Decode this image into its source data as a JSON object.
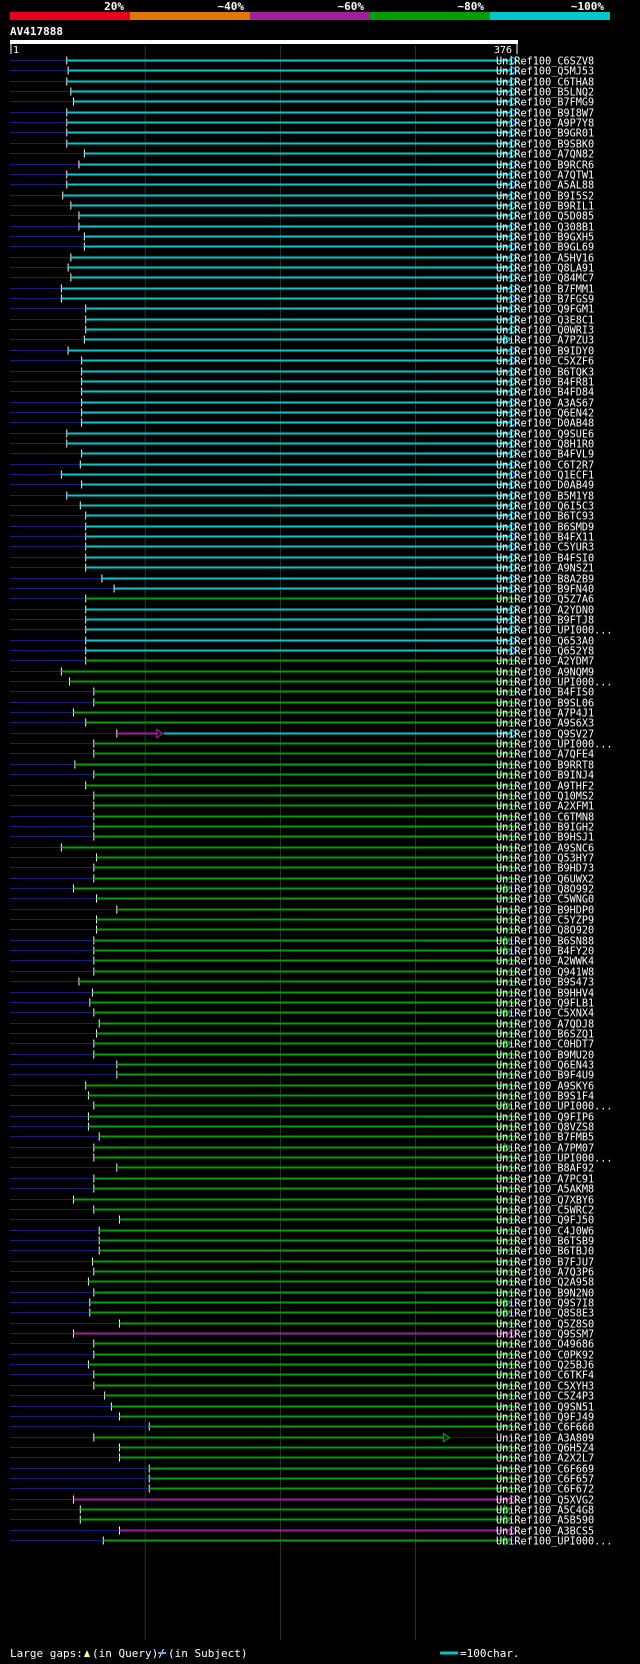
{
  "query": {
    "name": "AV417888",
    "start": "1",
    "end": "376",
    "length": 376
  },
  "scale_labels": [
    "20%",
    "~40%",
    "~60%",
    "~80%",
    "~100%"
  ],
  "colors": {
    "scale": [
      "#e8001e",
      "#e07800",
      "#a0209a",
      "#00a000",
      "#00c8c8"
    ],
    "cyan": "#00c8c8",
    "green": "#00a000",
    "magenta": "#a0209a",
    "background_line": "#1a1a7a",
    "query_bar": "#ffffff"
  },
  "footer": {
    "gaps_prefix": "Large gaps:",
    "gaps_query": "(in Query)/",
    "gaps_subject": "(in Subject)",
    "legend_text": "=100char."
  },
  "hits": [
    {
      "name": "UniRef100_C6SZV8",
      "color": "cyan",
      "start": 43,
      "end": 376,
      "arrow": true
    },
    {
      "name": "UniRef100_Q5MJ53",
      "color": "cyan",
      "start": 44,
      "end": 376,
      "arrow": true
    },
    {
      "name": "UniRef100_C6THA8",
      "color": "cyan",
      "start": 43,
      "end": 376,
      "arrow": true
    },
    {
      "name": "UniRef100_B5LNQ2",
      "color": "cyan",
      "start": 46,
      "end": 376,
      "arrow": true
    },
    {
      "name": "UniRef100_B7FMG9",
      "color": "cyan",
      "start": 48,
      "end": 376,
      "arrow": true
    },
    {
      "name": "UniRef100_B9I8W7",
      "color": "cyan",
      "start": 43,
      "end": 376,
      "arrow": true
    },
    {
      "name": "UniRef100_A9P7Y8",
      "color": "cyan",
      "start": 43,
      "end": 376,
      "arrow": true
    },
    {
      "name": "UniRef100_B9GR01",
      "color": "cyan",
      "start": 43,
      "end": 376,
      "arrow": true
    },
    {
      "name": "UniRef100_B9SBK0",
      "color": "cyan",
      "start": 43,
      "end": 376,
      "arrow": true
    },
    {
      "name": "UniRef100_A7QN82",
      "color": "cyan",
      "start": 56,
      "end": 376,
      "arrow": true
    },
    {
      "name": "UniRef100_B9RCR6",
      "color": "cyan",
      "start": 52,
      "end": 376,
      "arrow": true
    },
    {
      "name": "UniRef100_A7QTW1",
      "color": "cyan",
      "start": 43,
      "end": 376,
      "arrow": true
    },
    {
      "name": "UniRef100_A5AL88",
      "color": "cyan",
      "start": 43,
      "end": 376,
      "arrow": true
    },
    {
      "name": "UniRef100_B9I5S2",
      "color": "cyan",
      "start": 40,
      "end": 376,
      "arrow": true
    },
    {
      "name": "UniRef100_B9RIL1",
      "color": "cyan",
      "start": 46,
      "end": 376,
      "arrow": true
    },
    {
      "name": "UniRef100_Q5D085",
      "color": "cyan",
      "start": 52,
      "end": 376,
      "arrow": true
    },
    {
      "name": "UniRef100_Q308B1",
      "color": "cyan",
      "start": 52,
      "end": 376,
      "arrow": true
    },
    {
      "name": "UniRef100_B9GXH5",
      "color": "cyan",
      "start": 56,
      "end": 376,
      "arrow": true
    },
    {
      "name": "UniRef100_B9GL69",
      "color": "cyan",
      "start": 56,
      "end": 376,
      "arrow": true
    },
    {
      "name": "UniRef100_A5HV16",
      "color": "cyan",
      "start": 46,
      "end": 376,
      "arrow": true
    },
    {
      "name": "UniRef100_Q8LA91",
      "color": "cyan",
      "start": 44,
      "end": 376,
      "arrow": true
    },
    {
      "name": "UniRef100_Q84MC7",
      "color": "cyan",
      "start": 46,
      "end": 376,
      "arrow": true
    },
    {
      "name": "UniRef100_B7FMM1",
      "color": "cyan",
      "start": 39,
      "end": 376,
      "arrow": true
    },
    {
      "name": "UniRef100_B7FGS9",
      "color": "cyan",
      "start": 39,
      "end": 376,
      "arrow": true
    },
    {
      "name": "UniRef100_Q9FGM1",
      "color": "cyan",
      "start": 57,
      "end": 376,
      "arrow": true
    },
    {
      "name": "UniRef100_Q3E8C1",
      "color": "cyan",
      "start": 57,
      "end": 376,
      "arrow": true
    },
    {
      "name": "UniRef100_Q0WRI3",
      "color": "cyan",
      "start": 57,
      "end": 376,
      "arrow": true
    },
    {
      "name": "UniRef100_A7PZU3",
      "color": "cyan",
      "start": 56,
      "end": 371,
      "arrow": true
    },
    {
      "name": "UniRef100_B9IDY0",
      "color": "cyan",
      "start": 44,
      "end": 376,
      "arrow": true
    },
    {
      "name": "UniRef100_C5XZF6",
      "color": "cyan",
      "start": 54,
      "end": 376,
      "arrow": true
    },
    {
      "name": "UniRef100_B6TQK3",
      "color": "cyan",
      "start": 54,
      "end": 376,
      "arrow": true
    },
    {
      "name": "UniRef100_B4FR81",
      "color": "cyan",
      "start": 54,
      "end": 376,
      "arrow": true
    },
    {
      "name": "UniRef100_B4FD84",
      "color": "cyan",
      "start": 54,
      "end": 376,
      "arrow": true
    },
    {
      "name": "UniRef100_A3AS67",
      "color": "cyan",
      "start": 54,
      "end": 376,
      "arrow": true
    },
    {
      "name": "UniRef100_Q6EN42",
      "color": "cyan",
      "start": 54,
      "end": 376,
      "arrow": true
    },
    {
      "name": "UniRef100_D0AB48",
      "color": "cyan",
      "start": 54,
      "end": 376,
      "arrow": true
    },
    {
      "name": "UniRef100_Q9SUE6",
      "color": "cyan",
      "start": 43,
      "end": 376,
      "arrow": true
    },
    {
      "name": "UniRef100_Q8H1R0",
      "color": "cyan",
      "start": 43,
      "end": 376,
      "arrow": true
    },
    {
      "name": "UniRef100_B4FVL9",
      "color": "cyan",
      "start": 54,
      "end": 376,
      "arrow": true
    },
    {
      "name": "UniRef100_C6T2R7",
      "color": "cyan",
      "start": 53,
      "end": 376,
      "arrow": true
    },
    {
      "name": "UniRef100_Q1ECF1",
      "color": "cyan",
      "start": 39,
      "end": 376,
      "arrow": true
    },
    {
      "name": "UniRef100_D0AB49",
      "color": "cyan",
      "start": 54,
      "end": 376,
      "arrow": true
    },
    {
      "name": "UniRef100_B5M1Y8",
      "color": "cyan",
      "start": 43,
      "end": 376,
      "arrow": true
    },
    {
      "name": "UniRef100_Q6I5C3",
      "color": "cyan",
      "start": 53,
      "end": 376,
      "arrow": true
    },
    {
      "name": "UniRef100_B6TC93",
      "color": "cyan",
      "start": 57,
      "end": 376,
      "arrow": true
    },
    {
      "name": "UniRef100_B6SMD9",
      "color": "cyan",
      "start": 57,
      "end": 376,
      "arrow": true
    },
    {
      "name": "UniRef100_B4FX11",
      "color": "cyan",
      "start": 57,
      "end": 376,
      "arrow": true
    },
    {
      "name": "UniRef100_C5YUR3",
      "color": "cyan",
      "start": 57,
      "end": 376,
      "arrow": true
    },
    {
      "name": "UniRef100_B4FSI0",
      "color": "cyan",
      "start": 57,
      "end": 376,
      "arrow": true
    },
    {
      "name": "UniRef100_A9NSZ1",
      "color": "cyan",
      "start": 57,
      "end": 376,
      "arrow": true
    },
    {
      "name": "UniRef100_B8A2B9",
      "color": "cyan",
      "start": 69,
      "end": 376,
      "arrow": true
    },
    {
      "name": "UniRef100_B9FN40",
      "color": "cyan",
      "start": 78,
      "end": 376,
      "arrow": true
    },
    {
      "name": "UniRef100_Q5Z7A6",
      "color": "green",
      "start": 57,
      "end": 376,
      "arrow": false
    },
    {
      "name": "UniRef100_A2YDN0",
      "color": "cyan",
      "start": 57,
      "end": 376,
      "arrow": true
    },
    {
      "name": "UniRef100_B9FTJ8",
      "color": "cyan",
      "start": 57,
      "end": 376,
      "arrow": true
    },
    {
      "name": "UniRef100_UPI000...",
      "color": "cyan",
      "start": 57,
      "end": 376,
      "arrow": true
    },
    {
      "name": "UniRef100_Q653A0",
      "color": "cyan",
      "start": 57,
      "end": 376,
      "arrow": true
    },
    {
      "name": "UniRef100_Q652Y8",
      "color": "cyan",
      "start": 57,
      "end": 376,
      "arrow": true
    },
    {
      "name": "UniRef100_A2YDM7",
      "color": "green",
      "start": 57,
      "end": 376,
      "arrow": false
    },
    {
      "name": "UniRef100_A9NQM9",
      "color": "green",
      "start": 39,
      "end": 376,
      "arrow": false
    },
    {
      "name": "UniRef100_UPI000...",
      "color": "green",
      "start": 45,
      "end": 376,
      "arrow": false
    },
    {
      "name": "UniRef100_B4FIS0",
      "color": "green",
      "start": 63,
      "end": 376,
      "arrow": false
    },
    {
      "name": "UniRef100_B9SL06",
      "color": "green",
      "start": 63,
      "end": 376,
      "arrow": false
    },
    {
      "name": "UniRef100_A7P4J1",
      "color": "green",
      "start": 48,
      "end": 376,
      "arrow": false
    },
    {
      "name": "UniRef100_A9S6X3",
      "color": "green",
      "start": 57,
      "end": 376,
      "arrow": false
    },
    {
      "name": "UniRef100_Q9SV27",
      "color": "magenta",
      "start": 80,
      "end": 114,
      "arrow": true,
      "ext": "cyan",
      "ext_end": 376
    },
    {
      "name": "UniRef100_UPI000...",
      "color": "green",
      "start": 63,
      "end": 376,
      "arrow": false
    },
    {
      "name": "UniRef100_A7QFE4",
      "color": "green",
      "start": 63,
      "end": 376,
      "arrow": false
    },
    {
      "name": "UniRef100_B9RRT8",
      "color": "green",
      "start": 49,
      "end": 376,
      "arrow": false
    },
    {
      "name": "UniRef100_B9INJ4",
      "color": "green",
      "start": 63,
      "end": 376,
      "arrow": false
    },
    {
      "name": "UniRef100_A9THF2",
      "color": "green",
      "start": 57,
      "end": 376,
      "arrow": false
    },
    {
      "name": "UniRef100_Q10MS2",
      "color": "green",
      "start": 63,
      "end": 376,
      "arrow": false
    },
    {
      "name": "UniRef100_A2XFM1",
      "color": "green",
      "start": 63,
      "end": 376,
      "arrow": false
    },
    {
      "name": "UniRef100_C6TMN8",
      "color": "green",
      "start": 63,
      "end": 376,
      "arrow": false
    },
    {
      "name": "UniRef100_B9IGH2",
      "color": "green",
      "start": 63,
      "end": 376,
      "arrow": false
    },
    {
      "name": "UniRef100_B9HSJ1",
      "color": "green",
      "start": 63,
      "end": 376,
      "arrow": false
    },
    {
      "name": "UniRef100_A9SNC6",
      "color": "green",
      "start": 39,
      "end": 376,
      "arrow": false
    },
    {
      "name": "UniRef100_Q53HY7",
      "color": "green",
      "start": 65,
      "end": 376,
      "arrow": false
    },
    {
      "name": "UniRef100_B9HD73",
      "color": "green",
      "start": 63,
      "end": 376,
      "arrow": false
    },
    {
      "name": "UniRef100_Q6UWX2",
      "color": "green",
      "start": 63,
      "end": 376,
      "arrow": false
    },
    {
      "name": "UniRef100_Q8O992",
      "color": "green",
      "start": 48,
      "end": 371,
      "arrow": true
    },
    {
      "name": "UniRef100_C5WNG0",
      "color": "green",
      "start": 65,
      "end": 376,
      "arrow": false
    },
    {
      "name": "UniRef100_B9HDP0",
      "color": "green",
      "start": 80,
      "end": 376,
      "arrow": false
    },
    {
      "name": "UniRef100_C5YZP9",
      "color": "green",
      "start": 65,
      "end": 376,
      "arrow": false
    },
    {
      "name": "UniRef100_Q8O920",
      "color": "green",
      "start": 65,
      "end": 376,
      "arrow": false
    },
    {
      "name": "UniRef100_B6SN88",
      "color": "green",
      "start": 63,
      "end": 371,
      "arrow": true
    },
    {
      "name": "UniRef100_B4FY20",
      "color": "green",
      "start": 63,
      "end": 371,
      "arrow": true
    },
    {
      "name": "UniRef100_A2WWK4",
      "color": "green",
      "start": 63,
      "end": 376,
      "arrow": false
    },
    {
      "name": "UniRef100_Q941W8",
      "color": "green",
      "start": 63,
      "end": 376,
      "arrow": false
    },
    {
      "name": "UniRef100_B9S473",
      "color": "green",
      "start": 52,
      "end": 376,
      "arrow": false
    },
    {
      "name": "UniRef100_B9HHV4",
      "color": "green",
      "start": 62,
      "end": 376,
      "arrow": false
    },
    {
      "name": "UniRef100_Q9FLB1",
      "color": "green",
      "start": 60,
      "end": 376,
      "arrow": false
    },
    {
      "name": "UniRef100_C5XNX4",
      "color": "green",
      "start": 63,
      "end": 371,
      "arrow": true
    },
    {
      "name": "UniRef100_A7QDJ8",
      "color": "green",
      "start": 67,
      "end": 376,
      "arrow": false
    },
    {
      "name": "UniRef100_B6SZQ1",
      "color": "green",
      "start": 65,
      "end": 376,
      "arrow": false
    },
    {
      "name": "UniRef100_C0HDT7",
      "color": "green",
      "start": 63,
      "end": 371,
      "arrow": true
    },
    {
      "name": "UniRef100_B9MU20",
      "color": "green",
      "start": 63,
      "end": 376,
      "arrow": false
    },
    {
      "name": "UniRef100_Q6EN43",
      "color": "green",
      "start": 80,
      "end": 376,
      "arrow": false
    },
    {
      "name": "UniRef100_B9F4U9",
      "color": "green",
      "start": 80,
      "end": 376,
      "arrow": false
    },
    {
      "name": "UniRef100_A9SKY6",
      "color": "green",
      "start": 57,
      "end": 376,
      "arrow": false
    },
    {
      "name": "UniRef100_B9S1F4",
      "color": "green",
      "start": 59,
      "end": 376,
      "arrow": false
    },
    {
      "name": "UniRef100_UPI000...",
      "color": "green",
      "start": 63,
      "end": 371,
      "arrow": true
    },
    {
      "name": "UniRef100_Q9FIP6",
      "color": "green",
      "start": 59,
      "end": 376,
      "arrow": false
    },
    {
      "name": "UniRef100_Q8VZS8",
      "color": "green",
      "start": 59,
      "end": 376,
      "arrow": false
    },
    {
      "name": "UniRef100_B7FMB5",
      "color": "green",
      "start": 67,
      "end": 376,
      "arrow": false
    },
    {
      "name": "UniRef100_A7PM07",
      "color": "green",
      "start": 63,
      "end": 371,
      "arrow": true
    },
    {
      "name": "UniRef100_UPI000...",
      "color": "green",
      "start": 63,
      "end": 376,
      "arrow": false
    },
    {
      "name": "UniRef100_B8AF92",
      "color": "green",
      "start": 80,
      "end": 376,
      "arrow": false
    },
    {
      "name": "UniRef100_A7PC91",
      "color": "green",
      "start": 63,
      "end": 376,
      "arrow": false
    },
    {
      "name": "UniRef100_A5AKM8",
      "color": "green",
      "start": 63,
      "end": 376,
      "arrow": false
    },
    {
      "name": "UniRef100_Q7XBY6",
      "color": "green",
      "start": 48,
      "end": 376,
      "arrow": false
    },
    {
      "name": "UniRef100_C5WRC2",
      "color": "green",
      "start": 63,
      "end": 376,
      "arrow": false
    },
    {
      "name": "UniRef100_Q9FJ50",
      "color": "green",
      "start": 82,
      "end": 376,
      "arrow": false
    },
    {
      "name": "UniRef100_C4J0W6",
      "color": "green",
      "start": 67,
      "end": 376,
      "arrow": false
    },
    {
      "name": "UniRef100_B6TSB9",
      "color": "green",
      "start": 67,
      "end": 376,
      "arrow": false
    },
    {
      "name": "UniRef100_B6TBJ0",
      "color": "green",
      "start": 67,
      "end": 376,
      "arrow": false
    },
    {
      "name": "UniRef100_B7FJU7",
      "color": "green",
      "start": 62,
      "end": 376,
      "arrow": false
    },
    {
      "name": "UniRef100_A7Q3P6",
      "color": "green",
      "start": 63,
      "end": 376,
      "arrow": false
    },
    {
      "name": "UniRef100_Q2A958",
      "color": "green",
      "start": 59,
      "end": 376,
      "arrow": false
    },
    {
      "name": "UniRef100_B9N2N0",
      "color": "green",
      "start": 63,
      "end": 376,
      "arrow": false
    },
    {
      "name": "UniRef100_Q9S7I8",
      "color": "green",
      "start": 60,
      "end": 371,
      "arrow": true
    },
    {
      "name": "UniRef100_Q8S8E3",
      "color": "green",
      "start": 60,
      "end": 371,
      "arrow": true
    },
    {
      "name": "UniRef100_Q5Z8S0",
      "color": "green",
      "start": 82,
      "end": 376,
      "arrow": false
    },
    {
      "name": "UniRef100_Q9SSM7",
      "color": "magenta",
      "start": 48,
      "end": 376,
      "arrow": true
    },
    {
      "name": "UniRef100_O49686",
      "color": "green",
      "start": 63,
      "end": 376,
      "arrow": false
    },
    {
      "name": "UniRef100_C0PK92",
      "color": "green",
      "start": 63,
      "end": 376,
      "arrow": false
    },
    {
      "name": "UniRef100_Q25BJ6",
      "color": "green",
      "start": 59,
      "end": 376,
      "arrow": false
    },
    {
      "name": "UniRef100_C6TKF4",
      "color": "green",
      "start": 63,
      "end": 376,
      "arrow": false
    },
    {
      "name": "UniRef100_C5XYH3",
      "color": "green",
      "start": 63,
      "end": 376,
      "arrow": false
    },
    {
      "name": "UniRef100_C5Z4P3",
      "color": "green",
      "start": 71,
      "end": 376,
      "arrow": false
    },
    {
      "name": "UniRef100_Q9SN51",
      "color": "green",
      "start": 76,
      "end": 376,
      "arrow": false
    },
    {
      "name": "UniRef100_Q9FJ49",
      "color": "green",
      "start": 82,
      "end": 376,
      "arrow": false
    },
    {
      "name": "UniRef100_C6F660",
      "color": "green",
      "start": 104,
      "end": 376,
      "arrow": false
    },
    {
      "name": "UniRef100_A3A809",
      "color": "green",
      "start": 63,
      "end": 326,
      "arrow": true
    },
    {
      "name": "UniRef100_Q6H5Z4",
      "color": "green",
      "start": 82,
      "end": 376,
      "arrow": false
    },
    {
      "name": "UniRef100_A2X2L7",
      "color": "green",
      "start": 82,
      "end": 376,
      "arrow": false
    },
    {
      "name": "UniRef100_C6F669",
      "color": "green",
      "start": 104,
      "end": 376,
      "arrow": false
    },
    {
      "name": "UniRef100_C6F657",
      "color": "green",
      "start": 104,
      "end": 376,
      "arrow": false
    },
    {
      "name": "UniRef100_C6F672",
      "color": "green",
      "start": 104,
      "end": 376,
      "arrow": false
    },
    {
      "name": "UniRef100_Q5XVG2",
      "color": "magenta",
      "start": 48,
      "end": 376,
      "arrow": true
    },
    {
      "name": "UniRef100_A5C4G8",
      "color": "green",
      "start": 53,
      "end": 371,
      "arrow": true
    },
    {
      "name": "UniRef100_A5B590",
      "color": "green",
      "start": 53,
      "end": 371,
      "arrow": true
    },
    {
      "name": "UniRef100_A3BCS5",
      "color": "magenta",
      "start": 82,
      "end": 376,
      "arrow": true
    },
    {
      "name": "UniRef100_UPI000...",
      "color": "green",
      "start": 70,
      "end": 371,
      "arrow": true
    }
  ]
}
